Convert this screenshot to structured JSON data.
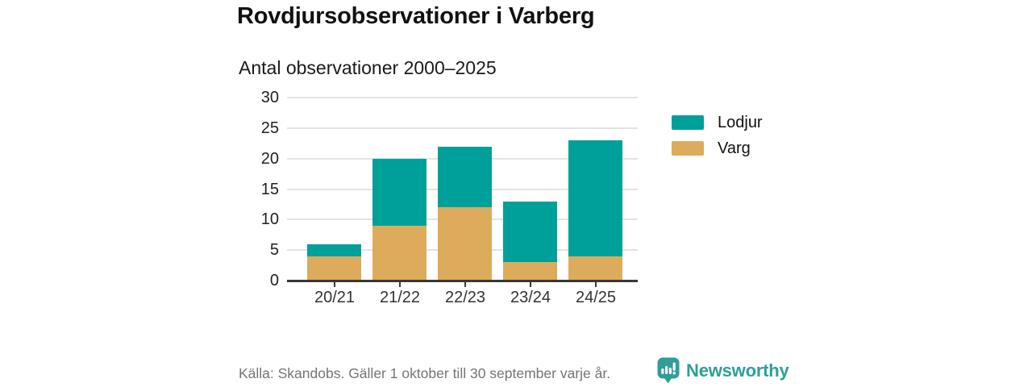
{
  "title": "Rovdjursobservationer i Varberg",
  "chart_data": {
    "type": "bar",
    "stacked": true,
    "title": "Antal observationer 2000–2025",
    "categories": [
      "20/21",
      "21/22",
      "22/23",
      "23/24",
      "24/25"
    ],
    "series": [
      {
        "name": "Lodjur",
        "color": "#00a09a",
        "values": [
          2,
          11,
          10,
          10,
          19
        ]
      },
      {
        "name": "Varg",
        "color": "#dcac5c",
        "values": [
          4,
          9,
          12,
          3,
          4
        ]
      }
    ],
    "stack_order_bottom_to_top": [
      "Varg",
      "Lodjur"
    ],
    "totals": [
      6,
      20,
      22,
      13,
      23
    ],
    "ylim": [
      0,
      30
    ],
    "yticks": [
      0,
      5,
      10,
      15,
      20,
      25,
      30
    ],
    "grid": true,
    "legend_position": "right",
    "xlabel": "",
    "ylabel": ""
  },
  "footer": {
    "source": "Källa: Skandobs. Gäller 1 oktober till 30 september varje år.",
    "brand": "Newsworthy"
  },
  "colors": {
    "lodjur": "#00a09a",
    "varg": "#dcac5c",
    "brand_teal": "#2f9e9a",
    "grid": "#e4e4e4",
    "axis": "#383838",
    "text_dark": "#111111",
    "text_muted": "#757575"
  }
}
